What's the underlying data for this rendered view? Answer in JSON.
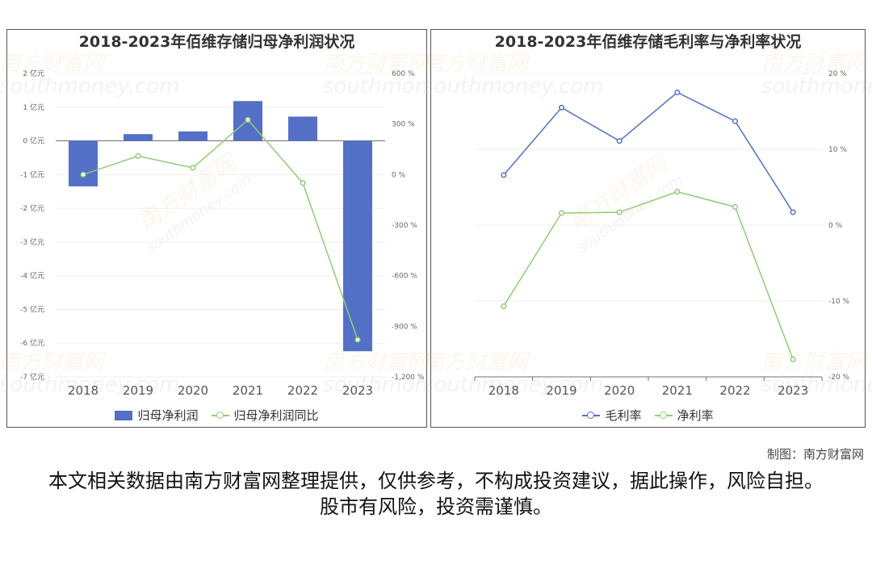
{
  "credit": "制图：南方财富网",
  "disclaimer": "本文相关数据由南方财富网整理提供，仅供参考，不构成投资建议，据此操作，风险自担。股市有风险，投资需谨慎。",
  "watermark": {
    "cn": "南方财富网",
    "en": "southmoney.com"
  },
  "chart_data": [
    {
      "type": "bar",
      "title": "2018-2023年佰维存储归母净利润状况",
      "categories": [
        "2018",
        "2019",
        "2020",
        "2021",
        "2022",
        "2023"
      ],
      "y_left": {
        "ylim": [
          -7,
          2
        ],
        "ticks": [
          "2 亿元",
          "1 亿元",
          "0 亿元",
          "-1 亿元",
          "-2 亿元",
          "-3 亿元",
          "-4 亿元",
          "-5 亿元",
          "-6 亿元",
          "-7 亿元"
        ]
      },
      "y_right": {
        "ylim": [
          -1200,
          600
        ],
        "ticks": [
          "600 %",
          "300 %",
          "0 %",
          "-300 %",
          "-600 %",
          "-900 %",
          "-1,200 %"
        ]
      },
      "series": [
        {
          "name": "归母净利润",
          "type": "bar",
          "axis": "left",
          "color": "#5470c6",
          "values": [
            -1.35,
            0.2,
            0.28,
            1.18,
            0.72,
            -6.24
          ]
        },
        {
          "name": "归母净利润同比",
          "type": "line",
          "axis": "right",
          "color": "#91cc75",
          "values": [
            0,
            110,
            40,
            325,
            -50,
            -980
          ]
        }
      ],
      "legend": "bottom-center",
      "grid": true
    },
    {
      "type": "line",
      "title": "2018-2023年佰维存储毛利率与净利率状况",
      "categories": [
        "2018",
        "2019",
        "2020",
        "2021",
        "2022",
        "2023"
      ],
      "y_right": {
        "ylim": [
          -20,
          20
        ],
        "ticks": [
          "20 %",
          "10 %",
          "0 %",
          "-10 %",
          "-20 %"
        ]
      },
      "series": [
        {
          "name": "毛利率",
          "color": "#5470c6",
          "values": [
            6.6,
            15.5,
            11.1,
            17.5,
            13.7,
            1.7
          ]
        },
        {
          "name": "净利率",
          "color": "#91cc75",
          "values": [
            -10.7,
            1.6,
            1.7,
            4.4,
            2.4,
            -17.7
          ]
        }
      ],
      "legend": "bottom-center",
      "grid": true
    }
  ]
}
